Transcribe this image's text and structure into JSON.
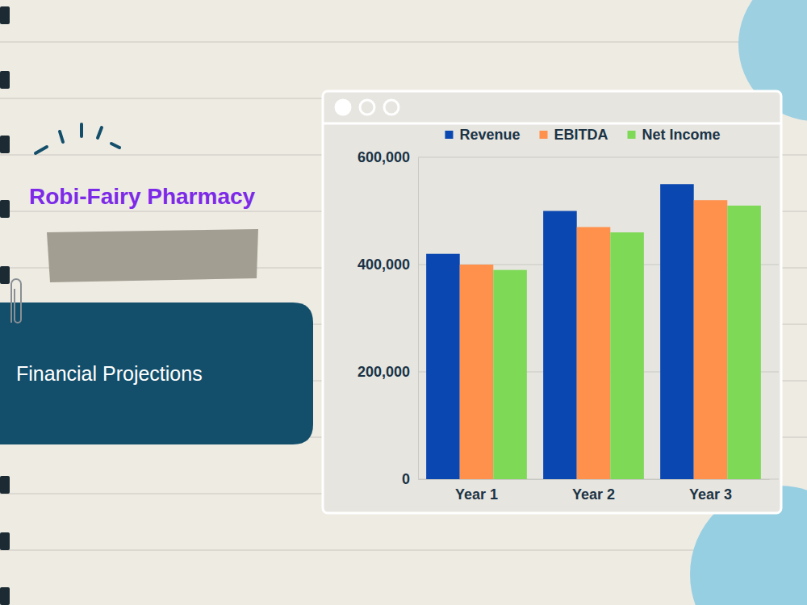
{
  "header": {
    "title": "Robi-Fairy Pharmacy",
    "subtitle": "Financial Projections"
  },
  "chart_data": {
    "type": "bar",
    "categories": [
      "Year 1",
      "Year 2",
      "Year 3"
    ],
    "series": [
      {
        "name": "Revenue",
        "color": "#0a47b0",
        "values": [
          420000,
          500000,
          550000
        ]
      },
      {
        "name": "EBITDA",
        "color": "#ff914d",
        "values": [
          400000,
          470000,
          520000
        ]
      },
      {
        "name": "Net Income",
        "color": "#7ed957",
        "values": [
          390000,
          460000,
          510000
        ]
      }
    ],
    "ylim": [
      0,
      600000
    ],
    "yticks": [
      0,
      {
        "value": 200000,
        "label": "200,000"
      },
      {
        "value": 400000,
        "label": "400,000"
      },
      {
        "value": 600000,
        "label": "600,000"
      }
    ],
    "grid": true,
    "legend": "top"
  }
}
